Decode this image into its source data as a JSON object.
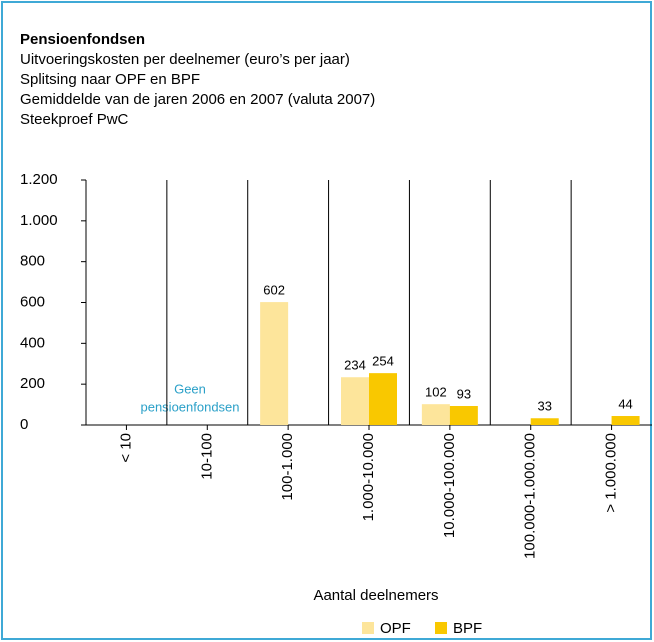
{
  "chart_data": {
    "type": "bar",
    "title": "Pensioenfondsen",
    "subtitle": [
      "Uitvoeringskosten per deelnemer (euro’s per jaar)",
      "Splitsing naar OPF en BPF",
      "Gemiddelde van de jaren 2006 en 2007 (valuta 2007)",
      "Steekproef PwC"
    ],
    "categories": [
      "< 10",
      "10-100",
      "100-1.000",
      "1.000-10.000",
      "10.000-100.000",
      "100.000-1.000.000",
      "> 1.000.000"
    ],
    "series": [
      {
        "name": "OPF",
        "color": "#fde59b",
        "values": [
          null,
          null,
          602,
          234,
          102,
          null,
          null
        ]
      },
      {
        "name": "BPF",
        "color": "#f9c800",
        "values": [
          null,
          null,
          null,
          254,
          93,
          33,
          44
        ]
      }
    ],
    "ylim": [
      0,
      1200
    ],
    "yticks": [
      0,
      200,
      400,
      600,
      800,
      {
        "value": 1000,
        "label": "1.000"
      },
      {
        "value": 1200,
        "label": "1.200"
      }
    ],
    "xlabel": "Aantal deelnemers",
    "annotation": [
      "Geen",
      "pensioenfondsen"
    ]
  }
}
